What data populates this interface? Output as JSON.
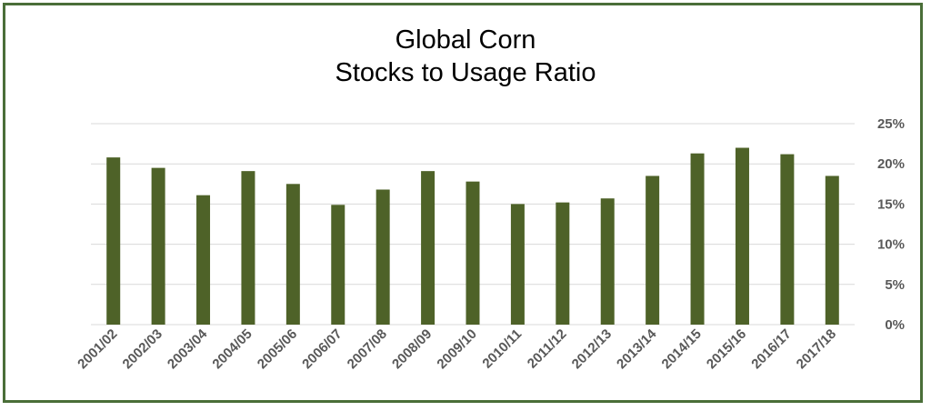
{
  "chart_data": {
    "type": "bar",
    "title": "Global Corn",
    "subtitle": "Stocks to Usage Ratio",
    "xlabel": "",
    "ylabel": "",
    "categories": [
      "2001/02",
      "2002/03",
      "2003/04",
      "2004/05",
      "2005/06",
      "2006/07",
      "2007/08",
      "2008/09",
      "2009/10",
      "2010/11",
      "2011/12",
      "2012/13",
      "2013/14",
      "2014/15",
      "2015/16",
      "2016/17",
      "2017/18"
    ],
    "values": [
      20.8,
      19.5,
      16.1,
      19.1,
      17.5,
      14.9,
      16.8,
      19.1,
      17.8,
      15.0,
      15.2,
      15.7,
      18.5,
      21.3,
      22.0,
      21.2,
      18.5
    ],
    "ylim": [
      0,
      25
    ],
    "yticks": [
      "0%",
      "5%",
      "10%",
      "15%",
      "20%",
      "25%"
    ],
    "y_axis_position": "right",
    "grid": true,
    "legend": "none",
    "bar_color": "#4e6228",
    "grid_color": "#d9d9d9",
    "border_color": "#4a6e38"
  }
}
